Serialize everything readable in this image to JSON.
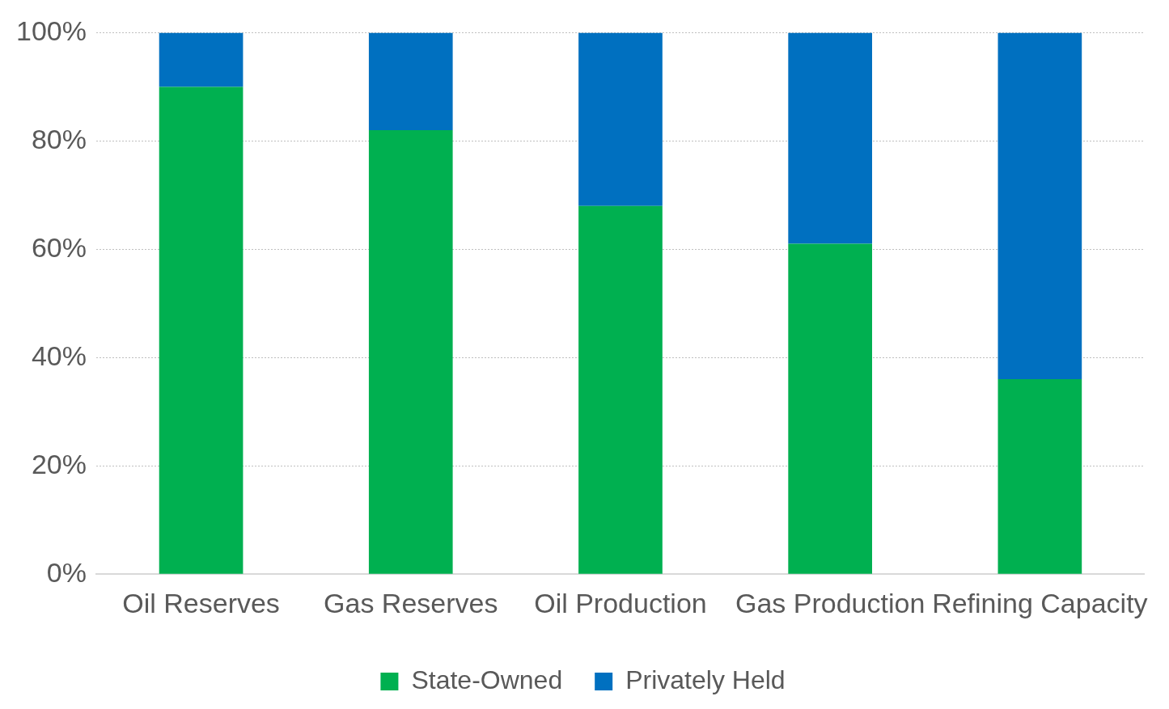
{
  "chart_data": {
    "type": "bar",
    "stacked": true,
    "categories": [
      "Oil Reserves",
      "Gas Reserves",
      "Oil Production",
      "Gas Production",
      "Refining Capacity"
    ],
    "series": [
      {
        "name": "State-Owned",
        "color": "#00b050",
        "values": [
          90,
          82,
          68,
          61,
          36
        ]
      },
      {
        "name": "Privately Held",
        "color": "#0070c0",
        "values": [
          10,
          18,
          32,
          39,
          64
        ]
      }
    ],
    "ylim": [
      0,
      100
    ],
    "yticks": [
      {
        "value": 0,
        "label": "0%"
      },
      {
        "value": 20,
        "label": "20%"
      },
      {
        "value": 40,
        "label": "40%"
      },
      {
        "value": 60,
        "label": "60%"
      },
      {
        "value": 80,
        "label": "80%"
      },
      {
        "value": 100,
        "label": "100%"
      }
    ],
    "grid": "y",
    "legend": "bottom"
  }
}
